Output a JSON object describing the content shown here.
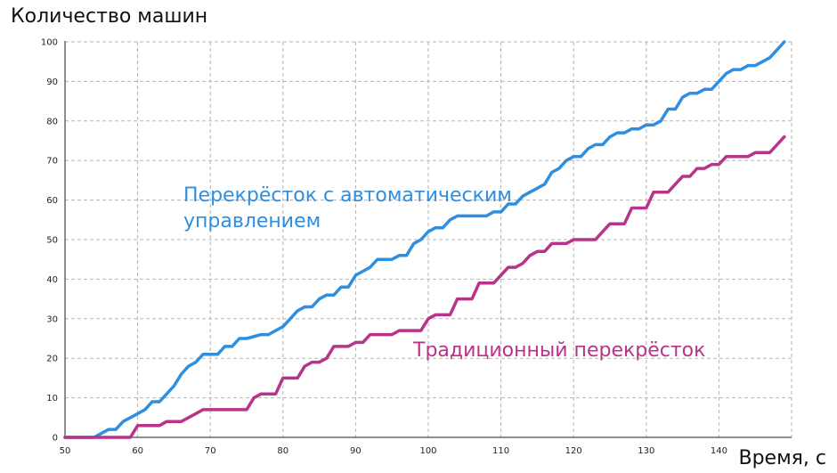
{
  "chart_data": {
    "type": "line",
    "title": "",
    "ylabel": "Количество машин",
    "xlabel": "Время, с",
    "xlim": [
      50,
      150
    ],
    "ylim": [
      0,
      100
    ],
    "x_ticks": [
      50,
      60,
      70,
      80,
      90,
      100,
      110,
      120,
      130,
      140
    ],
    "y_ticks": [
      0,
      10,
      20,
      30,
      40,
      50,
      60,
      70,
      80,
      90,
      100
    ],
    "grid": true,
    "series": [
      {
        "name": "Перекрёсток с автоматическим управлением",
        "color": "#2e8fe0",
        "x": [
          50,
          54,
          56,
          57,
          58,
          60,
          61,
          62,
          63,
          64,
          65,
          66,
          67,
          68,
          69,
          71,
          72,
          73,
          74,
          75,
          77,
          78,
          79,
          80,
          81,
          82,
          83,
          84,
          85,
          86,
          87,
          88,
          89,
          90,
          91,
          92,
          93,
          94,
          95,
          96,
          97,
          98,
          99,
          100,
          101,
          102,
          103,
          104,
          105,
          106,
          108,
          109,
          110,
          111,
          112,
          113,
          114,
          115,
          116,
          117,
          118,
          119,
          120,
          121,
          122,
          123,
          124,
          125,
          126,
          127,
          128,
          129,
          130,
          131,
          132,
          133,
          134,
          135,
          136,
          137,
          138,
          139,
          140,
          141,
          142,
          143,
          144,
          145,
          146,
          147,
          148,
          149
        ],
        "y": [
          0,
          0,
          2,
          2,
          4,
          6,
          7,
          9,
          9,
          11,
          13,
          16,
          18,
          19,
          21,
          21,
          23,
          23,
          25,
          25,
          26,
          26,
          27,
          28,
          30,
          32,
          33,
          33,
          35,
          36,
          36,
          38,
          38,
          41,
          42,
          43,
          45,
          45,
          45,
          46,
          46,
          49,
          50,
          52,
          53,
          53,
          55,
          56,
          56,
          56,
          56,
          57,
          57,
          59,
          59,
          61,
          62,
          63,
          64,
          67,
          68,
          70,
          71,
          71,
          73,
          74,
          74,
          76,
          77,
          77,
          78,
          78,
          79,
          79,
          80,
          83,
          83,
          86,
          87,
          87,
          88,
          88,
          90,
          92,
          93,
          93,
          94,
          94,
          95,
          96,
          98,
          100
        ]
      },
      {
        "name": "Традиционный перекрёсток",
        "color": "#b8338a",
        "x": [
          50,
          59,
          60,
          61,
          62,
          63,
          64,
          65,
          66,
          67,
          68,
          69,
          70,
          71,
          72,
          73,
          74,
          75,
          76,
          77,
          78,
          79,
          80,
          81,
          82,
          83,
          84,
          85,
          86,
          87,
          88,
          89,
          90,
          91,
          92,
          93,
          94,
          95,
          96,
          97,
          98,
          99,
          100,
          101,
          102,
          103,
          104,
          105,
          106,
          107,
          108,
          109,
          110,
          111,
          112,
          113,
          114,
          115,
          116,
          117,
          118,
          119,
          120,
          121,
          122,
          123,
          124,
          125,
          126,
          127,
          128,
          129,
          130,
          131,
          132,
          133,
          134,
          135,
          136,
          137,
          138,
          139,
          140,
          141,
          142,
          143,
          144,
          145,
          146,
          147,
          148,
          149
        ],
        "y": [
          0,
          0,
          3,
          3,
          3,
          3,
          4,
          4,
          4,
          5,
          6,
          7,
          7,
          7,
          7,
          7,
          7,
          7,
          10,
          11,
          11,
          11,
          15,
          15,
          15,
          18,
          19,
          19,
          20,
          23,
          23,
          23,
          24,
          24,
          26,
          26,
          26,
          26,
          27,
          27,
          27,
          27,
          30,
          31,
          31,
          31,
          35,
          35,
          35,
          39,
          39,
          39,
          41,
          43,
          43,
          44,
          46,
          47,
          47,
          49,
          49,
          49,
          50,
          50,
          50,
          50,
          52,
          54,
          54,
          54,
          58,
          58,
          58,
          62,
          62,
          62,
          64,
          66,
          66,
          68,
          68,
          69,
          69,
          71,
          71,
          71,
          71,
          72,
          72,
          72,
          74,
          76
        ]
      }
    ],
    "annotations": [
      {
        "text_lines": [
          "Перекрёсток с автоматическим",
          "управлением"
        ],
        "color": "#2e8fe0"
      },
      {
        "text_lines": [
          "Традиционный перекрёсток"
        ],
        "color": "#b8338a"
      }
    ]
  }
}
